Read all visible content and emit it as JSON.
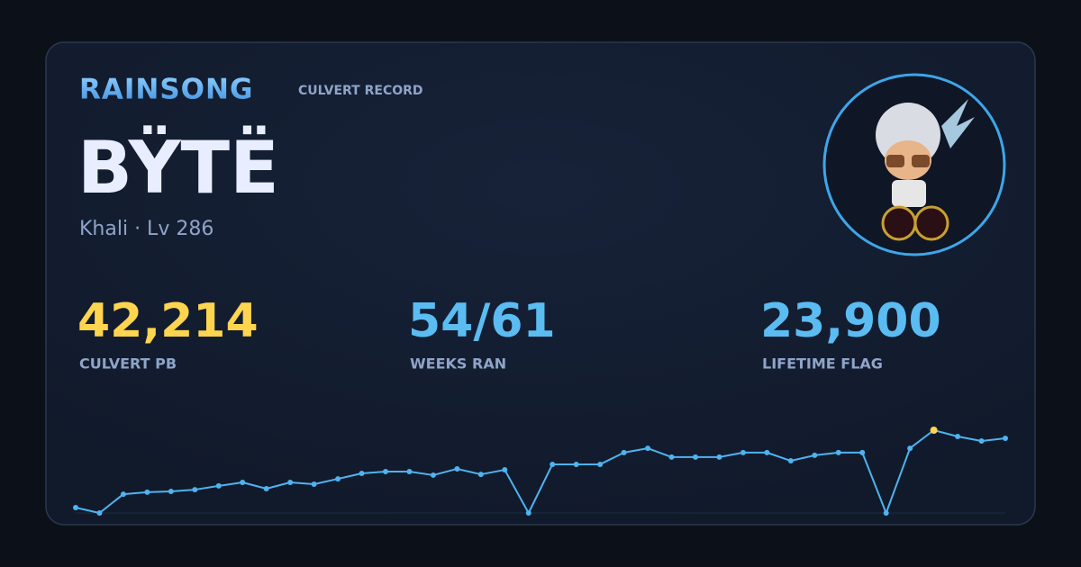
{
  "header": {
    "brand": "RAINSONG",
    "subtitle": "CULVERT RECORD"
  },
  "player": {
    "name": "BŸTË",
    "details": "Khali · Lv 286"
  },
  "stats": [
    {
      "value": "42,214",
      "label": "CULVERT PB"
    },
    {
      "value": "54/61",
      "label": "WEEKS RAN"
    },
    {
      "value": "23,900",
      "label": "LIFETIME FLAG"
    }
  ],
  "chart_data": {
    "type": "line",
    "color": "#4fb3f0",
    "highlight_color": "#ffd54f",
    "values": [
      2750,
      0,
      9600,
      10600,
      11000,
      11900,
      13800,
      15600,
      12400,
      15600,
      14700,
      17400,
      20200,
      21100,
      21100,
      19300,
      22500,
      19700,
      22000,
      0,
      24800,
      24800,
      24800,
      30800,
      33000,
      28500,
      28500,
      28500,
      30800,
      30800,
      26600,
      29400,
      30800,
      30800,
      0,
      33000,
      42214,
      39000,
      36700,
      38100
    ]
  }
}
